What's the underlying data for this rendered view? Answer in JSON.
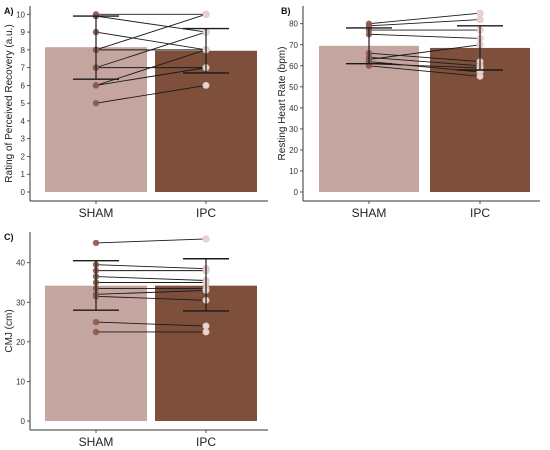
{
  "colors": {
    "sham": "#c5a59f",
    "ipc": "#7e4f3b",
    "line": "#1a1a1a",
    "axis": "#333333"
  },
  "chart_data": [
    {
      "panel": "A)",
      "type": "bar",
      "ylabel": "Rating of Perceived Recovery  (a.u.)",
      "categories": [
        "SHAM",
        "IPC"
      ],
      "series": [
        {
          "values": [
            8.15,
            7.95
          ]
        }
      ],
      "error_bars": {
        "lower": [
          6.35,
          6.7
        ],
        "upper": [
          9.9,
          9.2
        ]
      },
      "yticks": [
        0,
        1,
        2,
        3,
        4,
        5,
        6,
        7,
        8,
        9,
        10
      ],
      "ylim": [
        0,
        10.3
      ],
      "individual": [
        [
          10,
          10
        ],
        [
          9.9,
          9
        ],
        [
          9,
          8
        ],
        [
          8,
          8
        ],
        [
          8,
          10
        ],
        [
          7,
          7
        ],
        [
          7,
          9
        ],
        [
          6,
          8
        ],
        [
          6,
          7
        ],
        [
          5,
          6
        ]
      ],
      "grid": false
    },
    {
      "panel": "B)",
      "type": "bar",
      "ylabel": "Resting Heart Rate  (bpm)",
      "categories": [
        "SHAM",
        "IPC"
      ],
      "series": [
        {
          "values": [
            69.5,
            68.5
          ]
        }
      ],
      "error_bars": {
        "lower": [
          61,
          58
        ],
        "upper": [
          78,
          79
        ]
      },
      "yticks": [
        0,
        10,
        20,
        30,
        40,
        50,
        60,
        70,
        80
      ],
      "ylim": [
        0,
        87
      ],
      "individual": [
        [
          80,
          85
        ],
        [
          79,
          82
        ],
        [
          77,
          77
        ],
        [
          75,
          73
        ],
        [
          66,
          62
        ],
        [
          64,
          60
        ],
        [
          63,
          70
        ],
        [
          62,
          57
        ],
        [
          61,
          59
        ],
        [
          60,
          55
        ]
      ],
      "grid": false
    },
    {
      "panel": "C)",
      "type": "bar",
      "ylabel": "CMJ  (cm)",
      "categories": [
        "SHAM",
        "IPC"
      ],
      "series": [
        {
          "values": [
            34.2,
            34.2
          ]
        }
      ],
      "error_bars": {
        "lower": [
          28,
          27.8
        ],
        "upper": [
          40.5,
          41
        ]
      },
      "yticks": [
        0,
        10,
        20,
        30,
        40
      ],
      "ylim": [
        0,
        47
      ],
      "individual": [
        [
          45,
          46
        ],
        [
          39.5,
          38.5
        ],
        [
          38,
          38
        ],
        [
          36.5,
          35.5
        ],
        [
          35,
          35
        ],
        [
          33.5,
          33.5
        ],
        [
          32,
          33
        ],
        [
          31.5,
          30.5
        ],
        [
          25,
          24
        ],
        [
          22.5,
          22.5
        ]
      ],
      "grid": false
    }
  ]
}
